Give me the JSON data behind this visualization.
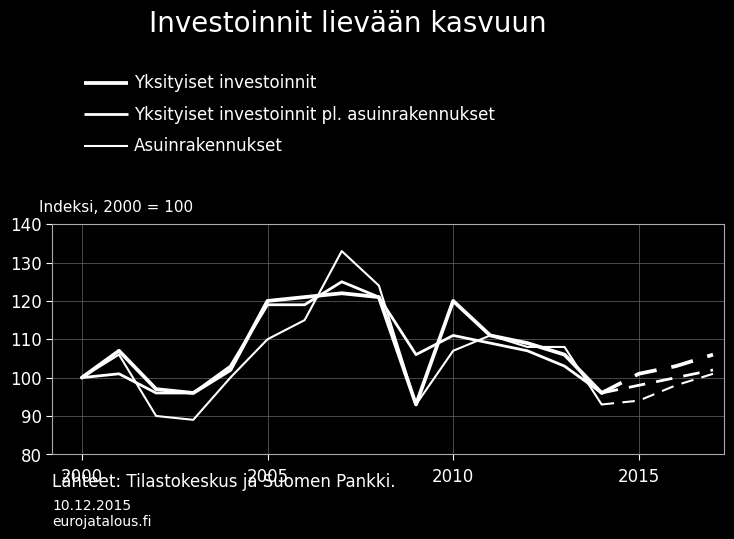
{
  "title": "Investoinnit lievään kasvuun",
  "legend_entries": [
    "Yksityiset investoinnit",
    "Yksityiset investoinnit pl. asuinrakennukset",
    "Asuinrakennukset"
  ],
  "ylabel": "Indeksi, 2000 = 100",
  "source": "Lähteet: Tilastokeskus ja Suomen Pankki.",
  "date_text": "10.12.2015\neurojatalous.fi",
  "background_color": "#000000",
  "text_color": "#ffffff",
  "line_color": "#ffffff",
  "ylim": [
    80,
    140
  ],
  "yticks": [
    80,
    90,
    100,
    110,
    120,
    130,
    140
  ],
  "xlim": [
    1999.2,
    2017.3
  ],
  "xticks": [
    2000,
    2005,
    2010,
    2015
  ],
  "years_solid": [
    2000,
    2001,
    2002,
    2003,
    2004,
    2005,
    2006,
    2007,
    2008,
    2009,
    2010,
    2011,
    2012,
    2013,
    2014
  ],
  "years_dashed": [
    2014,
    2015,
    2016,
    2017
  ],
  "series1_solid": [
    100,
    107,
    97,
    96,
    102,
    120,
    121,
    122,
    121,
    93,
    120,
    111,
    109,
    106,
    96
  ],
  "series1_dashed": [
    96,
    101,
    103,
    106
  ],
  "series2_solid": [
    100,
    101,
    96,
    96,
    103,
    119,
    119,
    125,
    121,
    106,
    111,
    109,
    107,
    103,
    96
  ],
  "series2_dashed": [
    96,
    98,
    100,
    102
  ],
  "series3_solid": [
    100,
    106,
    90,
    89,
    100,
    110,
    115,
    133,
    124,
    93,
    107,
    111,
    108,
    108,
    93
  ],
  "series3_dashed": [
    93,
    94,
    98,
    101
  ],
  "linewidth": 2.0,
  "title_fontsize": 20,
  "legend_fontsize": 12,
  "tick_fontsize": 12,
  "label_fontsize": 11,
  "source_fontsize": 12,
  "date_fontsize": 10,
  "grid_color": "#666666",
  "spine_color": "#aaaaaa"
}
